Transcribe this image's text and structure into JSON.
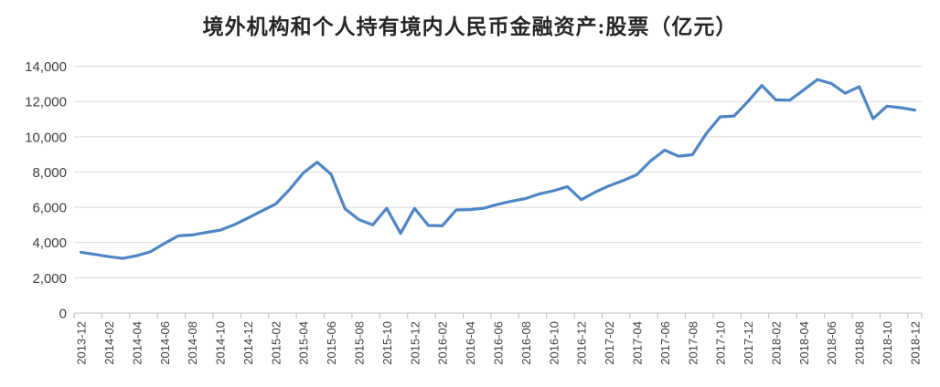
{
  "title": "境外机构和个人持有境内人民币金融资产:股票（亿元）",
  "colors": {
    "line": "#5085C3",
    "gridline": "#D9D9D9",
    "axis": "#BFBFBF",
    "tick_label": "#404040",
    "title_text": "#262626",
    "background": "#FFFFFF"
  },
  "chart_data": {
    "type": "line",
    "title": "境外机构和个人持有境内人民币金融资产:股票（亿元）",
    "series_name": "境外机构和个人持有境内人民币金融资产:股票",
    "unit": "亿元",
    "grid": "horizontal",
    "legend_position": "none",
    "ylim": [
      0,
      14000
    ],
    "y_ticks": [
      0,
      2000,
      4000,
      6000,
      8000,
      10000,
      12000,
      14000
    ],
    "y_tick_labels": [
      "0",
      "2,000",
      "4,000",
      "6,000",
      "8,000",
      "10,000",
      "12,000",
      "14,000"
    ],
    "x_tick_labels": [
      "2013-12",
      "2014-02",
      "2014-04",
      "2014-06",
      "2014-08",
      "2014-10",
      "2014-12",
      "2015-02",
      "2015-04",
      "2015-06",
      "2015-08",
      "2015-10",
      "2015-12",
      "2016-02",
      "2016-04",
      "2016-06",
      "2016-08",
      "2016-10",
      "2016-12",
      "2017-02",
      "2017-04",
      "2017-06",
      "2017-08",
      "2017-10",
      "2017-12",
      "2018-02",
      "2018-04",
      "2018-06",
      "2018-08",
      "2018-10",
      "2018-12"
    ],
    "x": [
      "2013-12",
      "2014-01",
      "2014-02",
      "2014-03",
      "2014-04",
      "2014-05",
      "2014-06",
      "2014-07",
      "2014-08",
      "2014-09",
      "2014-10",
      "2014-11",
      "2014-12",
      "2015-01",
      "2015-02",
      "2015-03",
      "2015-04",
      "2015-05",
      "2015-06",
      "2015-07",
      "2015-08",
      "2015-09",
      "2015-10",
      "2015-11",
      "2015-12",
      "2016-01",
      "2016-02",
      "2016-03",
      "2016-04",
      "2016-05",
      "2016-06",
      "2016-07",
      "2016-08",
      "2016-09",
      "2016-10",
      "2016-11",
      "2016-12",
      "2017-01",
      "2017-02",
      "2017-03",
      "2017-04",
      "2017-05",
      "2017-06",
      "2017-07",
      "2017-08",
      "2017-09",
      "2017-10",
      "2017-11",
      "2017-12",
      "2018-01",
      "2018-02",
      "2018-03",
      "2018-04",
      "2018-05",
      "2018-06",
      "2018-07",
      "2018-08",
      "2018-09",
      "2018-10",
      "2018-11",
      "2018-12"
    ],
    "values": [
      3450,
      3330,
      3200,
      3100,
      3250,
      3480,
      3950,
      4380,
      4430,
      4570,
      4700,
      5000,
      5390,
      5790,
      6180,
      7000,
      7950,
      8560,
      7870,
      5920,
      5300,
      5000,
      5950,
      4520,
      5940,
      4970,
      4950,
      5850,
      5870,
      5950,
      6170,
      6350,
      6500,
      6760,
      6940,
      7170,
      6430,
      6860,
      7220,
      7510,
      7850,
      8640,
      9240,
      8900,
      8985,
      10195,
      11130,
      11180,
      12000,
      12915,
      12095,
      12075,
      12650,
      13250,
      13020,
      12470,
      12845,
      11030,
      11740,
      11650,
      11515
    ]
  }
}
